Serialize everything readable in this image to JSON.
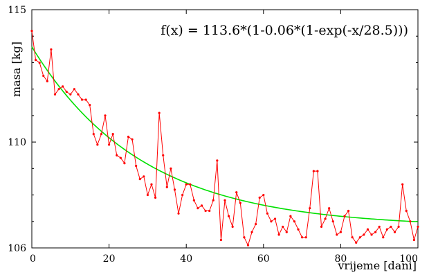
{
  "chart_data": {
    "type": "line",
    "title": "",
    "annotation": "f(x) = 113.6*(1-0.06*(1-exp(-x/28.5)))",
    "xlabel": "vrijeme [dani]",
    "ylabel": "masa [kg]",
    "xlim": [
      0,
      100
    ],
    "ylim": [
      106,
      115
    ],
    "x_ticks": [
      0,
      20,
      40,
      60,
      80,
      100
    ],
    "y_ticks": [
      106,
      110,
      115
    ],
    "x_tick_labels": [
      "0",
      "20",
      "40",
      "60",
      "80",
      "100"
    ],
    "y_tick_labels": [
      "106",
      "110",
      "115"
    ],
    "grid": false,
    "legend": "none",
    "colors": {
      "measured": "#ff0000",
      "fit": "#00e000",
      "axis": "#000000"
    },
    "fit": {
      "a": 113.6,
      "b": 0.06,
      "tau": 28.5
    },
    "series": [
      {
        "x": [
          0,
          1,
          2,
          3,
          4,
          5,
          6,
          7,
          8,
          9,
          10,
          11,
          12,
          13,
          14,
          15,
          16,
          17,
          18,
          19,
          20,
          21,
          22,
          23,
          24,
          25,
          26,
          27,
          28,
          29,
          30,
          31,
          32,
          33,
          34,
          35,
          36,
          37,
          38,
          39,
          40,
          41,
          42,
          43,
          44,
          45,
          46,
          47,
          48,
          49,
          50,
          51,
          52,
          53,
          54,
          55,
          56,
          57,
          58,
          59,
          60,
          61,
          62,
          63,
          64,
          65,
          66,
          67,
          68,
          69,
          70,
          71,
          72,
          73,
          74,
          75,
          76,
          77,
          78,
          79,
          80,
          81,
          82,
          83,
          84,
          85,
          86,
          87,
          88,
          89,
          90,
          91,
          92,
          93,
          94,
          95,
          96,
          97,
          98,
          99,
          100
        ],
        "values": [
          114.2,
          113.1,
          113.0,
          112.5,
          112.3,
          113.5,
          111.8,
          112.0,
          112.1,
          111.9,
          111.8,
          112.0,
          111.8,
          111.6,
          111.6,
          111.4,
          110.3,
          109.9,
          110.3,
          111.0,
          109.9,
          110.3,
          109.5,
          109.4,
          109.2,
          110.2,
          110.1,
          109.1,
          108.6,
          108.7,
          108.0,
          108.4,
          107.9,
          111.1,
          109.5,
          108.3,
          109.0,
          108.2,
          107.3,
          108.0,
          108.4,
          108.4,
          107.8,
          107.5,
          107.6,
          107.4,
          107.4,
          107.8,
          109.3,
          106.3,
          107.8,
          107.2,
          106.8,
          108.1,
          107.7,
          106.4,
          106.1,
          106.6,
          106.9,
          107.9,
          108.0,
          107.3,
          107.0,
          107.1,
          106.5,
          106.8,
          106.6,
          107.2,
          107.0,
          106.7,
          106.4,
          106.4,
          107.5,
          108.9,
          108.9,
          106.8,
          107.1,
          107.5,
          107.0,
          106.5,
          106.6,
          107.2,
          107.4,
          106.4,
          106.2,
          106.4,
          106.5,
          106.7,
          106.5,
          106.6,
          106.8,
          106.4,
          106.7,
          106.8,
          106.6,
          106.8,
          108.4,
          107.4,
          107.0,
          106.3,
          106.8
        ]
      }
    ]
  }
}
